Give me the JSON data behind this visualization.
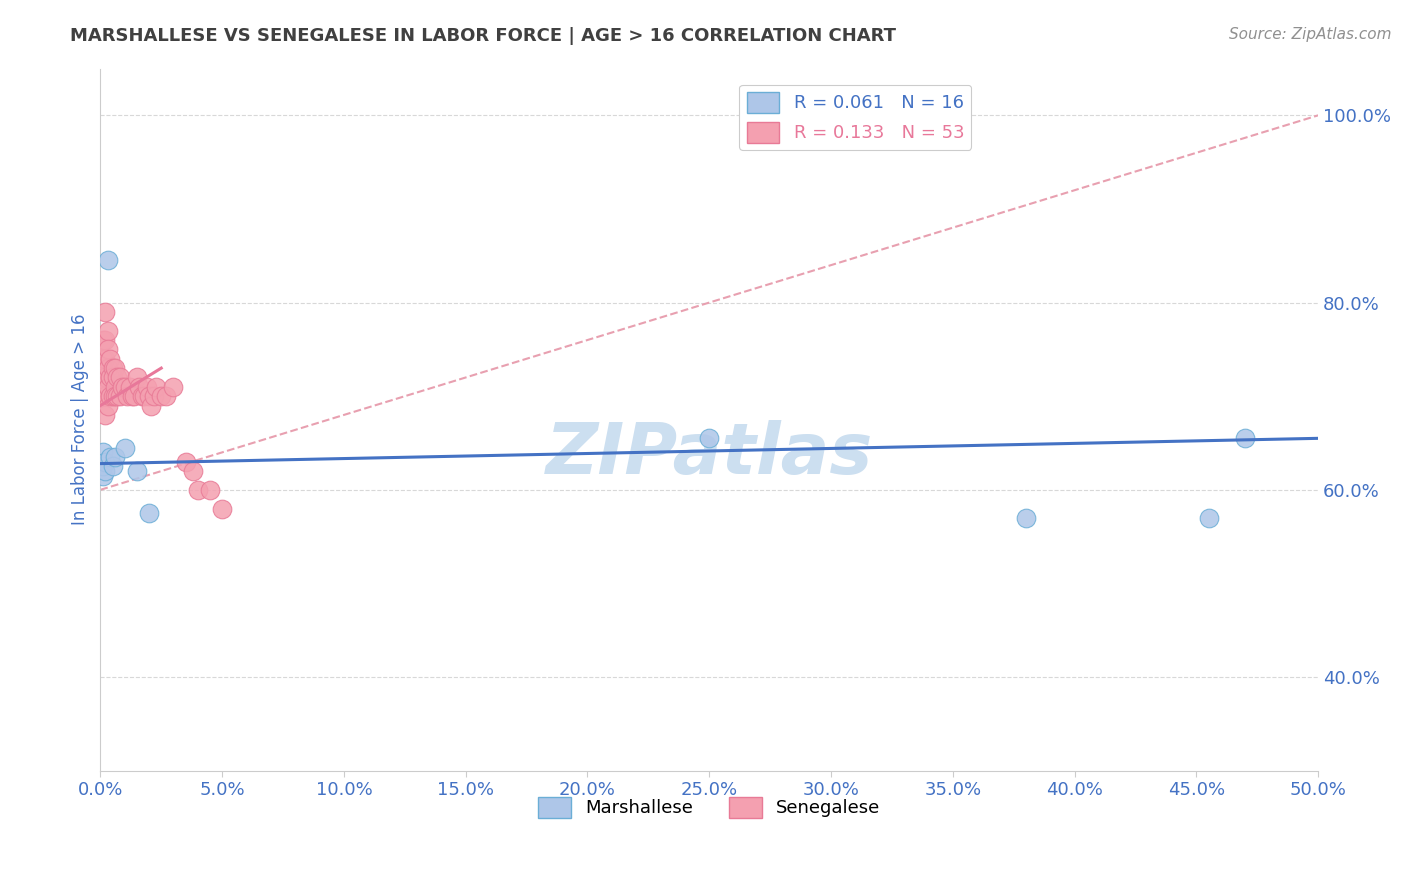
{
  "title": "MARSHALLESE VS SENEGALESE IN LABOR FORCE | AGE > 16 CORRELATION CHART",
  "source_text": "Source: ZipAtlas.com",
  "ylabel": "In Labor Force | Age > 16",
  "xlim": [
    0.0,
    0.5
  ],
  "ylim": [
    0.3,
    1.05
  ],
  "ytick_labels": [
    "40.0%",
    "60.0%",
    "80.0%",
    "100.0%"
  ],
  "ytick_values": [
    0.4,
    0.6,
    0.8,
    1.0
  ],
  "xtick_labels": [
    "0.0%",
    "5.0%",
    "10.0%",
    "15.0%",
    "20.0%",
    "25.0%",
    "30.0%",
    "35.0%",
    "40.0%",
    "45.0%",
    "50.0%"
  ],
  "xtick_values": [
    0.0,
    0.05,
    0.1,
    0.15,
    0.2,
    0.25,
    0.3,
    0.35,
    0.4,
    0.45,
    0.5
  ],
  "legend_items": [
    {
      "label": "R = 0.061   N = 16",
      "color": "#aec6e8"
    },
    {
      "label": "R = 0.133   N = 53",
      "color": "#f4a0b0"
    }
  ],
  "legend_bottom_items": [
    {
      "label": "Marshallese",
      "color": "#aec6e8"
    },
    {
      "label": "Senegalese",
      "color": "#f4a0b0"
    }
  ],
  "marshallese_x": [
    0.001,
    0.001,
    0.001,
    0.002,
    0.002,
    0.003,
    0.004,
    0.005,
    0.006,
    0.01,
    0.015,
    0.02,
    0.25,
    0.38,
    0.455,
    0.47
  ],
  "marshallese_y": [
    0.615,
    0.625,
    0.64,
    0.63,
    0.62,
    0.845,
    0.635,
    0.625,
    0.635,
    0.645,
    0.62,
    0.575,
    0.655,
    0.57,
    0.57,
    0.655
  ],
  "senegalese_x": [
    0.001,
    0.001,
    0.001,
    0.001,
    0.001,
    0.001,
    0.002,
    0.002,
    0.002,
    0.002,
    0.002,
    0.002,
    0.003,
    0.003,
    0.003,
    0.003,
    0.003,
    0.004,
    0.004,
    0.004,
    0.005,
    0.005,
    0.005,
    0.006,
    0.006,
    0.006,
    0.007,
    0.007,
    0.008,
    0.008,
    0.009,
    0.01,
    0.011,
    0.012,
    0.013,
    0.014,
    0.015,
    0.016,
    0.017,
    0.018,
    0.019,
    0.02,
    0.021,
    0.022,
    0.023,
    0.025,
    0.027,
    0.03,
    0.035,
    0.038,
    0.04,
    0.045,
    0.05
  ],
  "senegalese_y": [
    0.74,
    0.72,
    0.7,
    0.76,
    0.73,
    0.71,
    0.79,
    0.76,
    0.74,
    0.72,
    0.7,
    0.68,
    0.77,
    0.75,
    0.73,
    0.71,
    0.69,
    0.74,
    0.72,
    0.7,
    0.73,
    0.72,
    0.7,
    0.73,
    0.71,
    0.7,
    0.72,
    0.7,
    0.72,
    0.7,
    0.71,
    0.71,
    0.7,
    0.71,
    0.7,
    0.7,
    0.72,
    0.71,
    0.7,
    0.7,
    0.71,
    0.7,
    0.69,
    0.7,
    0.71,
    0.7,
    0.7,
    0.71,
    0.63,
    0.62,
    0.6,
    0.6,
    0.58
  ],
  "blue_line_x": [
    0.0,
    0.5
  ],
  "blue_line_y": [
    0.628,
    0.655
  ],
  "pink_line_x": [
    0.0,
    0.025
  ],
  "pink_line_y": [
    0.69,
    0.73
  ],
  "dashed_line_x": [
    0.0,
    0.5
  ],
  "dashed_line_y": [
    0.6,
    1.0
  ],
  "dot_color_marshallese": "#aec6e8",
  "dot_color_senegalese": "#f4a0b0",
  "dot_edge_marshallese": "#6baed6",
  "dot_edge_senegalese": "#e87a96",
  "line_color_blue": "#4472c4",
  "line_color_pink": "#e8789a",
  "dashed_line_color": "#e8a0b0",
  "background_color": "#ffffff",
  "grid_color": "#d8d8d8",
  "title_color": "#404040",
  "axis_label_color": "#4472c4",
  "tick_label_color": "#4472c4",
  "source_color": "#909090",
  "watermark_text": "ZIPatlas",
  "watermark_color": "#ccdff0",
  "watermark_fontsize": 52
}
